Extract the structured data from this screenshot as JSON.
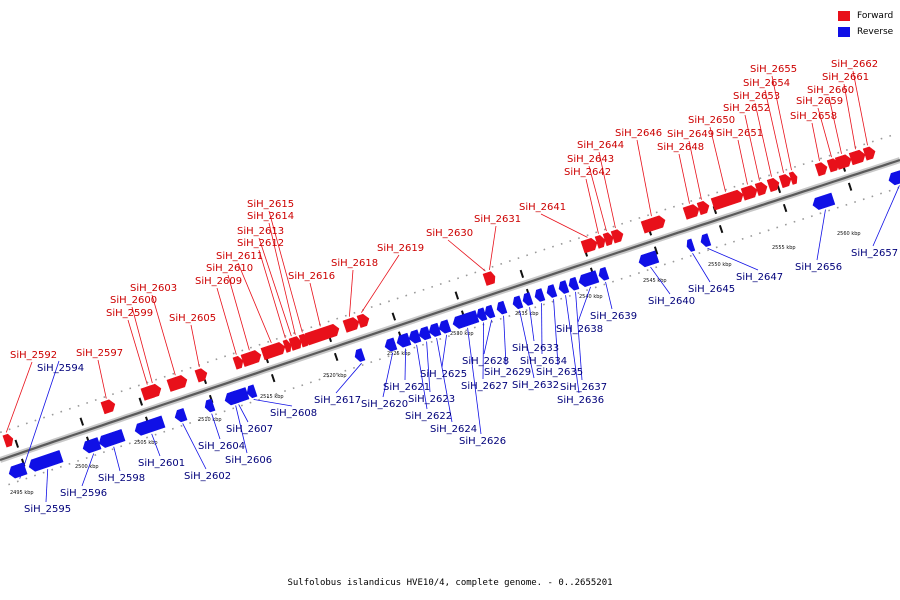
{
  "colors": {
    "forward": "#e8101a",
    "reverse": "#1010e6",
    "forward_text": "#cc0000",
    "reverse_text": "#00007a"
  },
  "legend": [
    {
      "key": "forward",
      "label": "Forward"
    },
    {
      "key": "reverse",
      "label": "Reverse"
    }
  ],
  "caption": "Sulfolobus islandicus HVE10/4, complete genome. - 0..2655201",
  "scale": {
    "unit": "kbp",
    "ticks": [
      2495,
      2500,
      2505,
      2510,
      2515,
      2520,
      2525,
      2530,
      2535,
      2540,
      2545,
      2550,
      2555,
      2560
    ]
  },
  "genes": [
    {
      "id": "SiH_2592",
      "strand": "forward"
    },
    {
      "id": "SiH_2594",
      "strand": "reverse"
    },
    {
      "id": "SiH_2595",
      "strand": "reverse"
    },
    {
      "id": "SiH_2596",
      "strand": "reverse"
    },
    {
      "id": "SiH_2597",
      "strand": "forward"
    },
    {
      "id": "SiH_2598",
      "strand": "reverse"
    },
    {
      "id": "SiH_2599",
      "strand": "forward"
    },
    {
      "id": "SiH_2600",
      "strand": "forward"
    },
    {
      "id": "SiH_2601",
      "strand": "reverse"
    },
    {
      "id": "SiH_2602",
      "strand": "reverse"
    },
    {
      "id": "SiH_2603",
      "strand": "forward"
    },
    {
      "id": "SiH_2604",
      "strand": "reverse"
    },
    {
      "id": "SiH_2605",
      "strand": "forward"
    },
    {
      "id": "SiH_2606",
      "strand": "reverse"
    },
    {
      "id": "SiH_2607",
      "strand": "reverse"
    },
    {
      "id": "SiH_2608",
      "strand": "reverse"
    },
    {
      "id": "SiH_2609",
      "strand": "forward"
    },
    {
      "id": "SiH_2610",
      "strand": "forward"
    },
    {
      "id": "SiH_2611",
      "strand": "forward"
    },
    {
      "id": "SiH_2612",
      "strand": "forward"
    },
    {
      "id": "SiH_2613",
      "strand": "forward"
    },
    {
      "id": "SiH_2614",
      "strand": "forward"
    },
    {
      "id": "SiH_2615",
      "strand": "forward"
    },
    {
      "id": "SiH_2616",
      "strand": "forward"
    },
    {
      "id": "SiH_2617",
      "strand": "reverse"
    },
    {
      "id": "SiH_2618",
      "strand": "forward"
    },
    {
      "id": "SiH_2619",
      "strand": "forward"
    },
    {
      "id": "SiH_2620",
      "strand": "reverse"
    },
    {
      "id": "SiH_2621",
      "strand": "reverse"
    },
    {
      "id": "SiH_2622",
      "strand": "reverse"
    },
    {
      "id": "SiH_2623",
      "strand": "reverse"
    },
    {
      "id": "SiH_2624",
      "strand": "reverse"
    },
    {
      "id": "SiH_2625",
      "strand": "reverse"
    },
    {
      "id": "SiH_2626",
      "strand": "reverse"
    },
    {
      "id": "SiH_2627",
      "strand": "reverse"
    },
    {
      "id": "SiH_2628",
      "strand": "reverse"
    },
    {
      "id": "SiH_2629",
      "strand": "reverse"
    },
    {
      "id": "SiH_2630",
      "strand": "forward"
    },
    {
      "id": "SiH_2631",
      "strand": "forward"
    },
    {
      "id": "SiH_2632",
      "strand": "reverse"
    },
    {
      "id": "SiH_2633",
      "strand": "reverse"
    },
    {
      "id": "SiH_2634",
      "strand": "reverse"
    },
    {
      "id": "SiH_2635",
      "strand": "reverse"
    },
    {
      "id": "SiH_2636",
      "strand": "reverse"
    },
    {
      "id": "SiH_2637",
      "strand": "reverse"
    },
    {
      "id": "SiH_2638",
      "strand": "reverse"
    },
    {
      "id": "SiH_2639",
      "strand": "reverse"
    },
    {
      "id": "SiH_2640",
      "strand": "reverse"
    },
    {
      "id": "SiH_2641",
      "strand": "forward"
    },
    {
      "id": "SiH_2642",
      "strand": "forward"
    },
    {
      "id": "SiH_2643",
      "strand": "forward"
    },
    {
      "id": "SiH_2644",
      "strand": "forward"
    },
    {
      "id": "SiH_2645",
      "strand": "reverse"
    },
    {
      "id": "SiH_2646",
      "strand": "forward"
    },
    {
      "id": "SiH_2647",
      "strand": "reverse"
    },
    {
      "id": "SiH_2648",
      "strand": "forward"
    },
    {
      "id": "SiH_2649",
      "strand": "forward"
    },
    {
      "id": "SiH_2650",
      "strand": "forward"
    },
    {
      "id": "SiH_2651",
      "strand": "forward"
    },
    {
      "id": "SiH_2652",
      "strand": "forward"
    },
    {
      "id": "SiH_2653",
      "strand": "forward"
    },
    {
      "id": "SiH_2654",
      "strand": "forward"
    },
    {
      "id": "SiH_2655",
      "strand": "forward"
    },
    {
      "id": "SiH_2656",
      "strand": "reverse"
    },
    {
      "id": "SiH_2657",
      "strand": "reverse"
    },
    {
      "id": "SiH_2658",
      "strand": "forward"
    },
    {
      "id": "SiH_2659",
      "strand": "forward"
    },
    {
      "id": "SiH_2660",
      "strand": "forward"
    },
    {
      "id": "SiH_2661",
      "strand": "forward"
    },
    {
      "id": "SiH_2662",
      "strand": "forward"
    }
  ]
}
